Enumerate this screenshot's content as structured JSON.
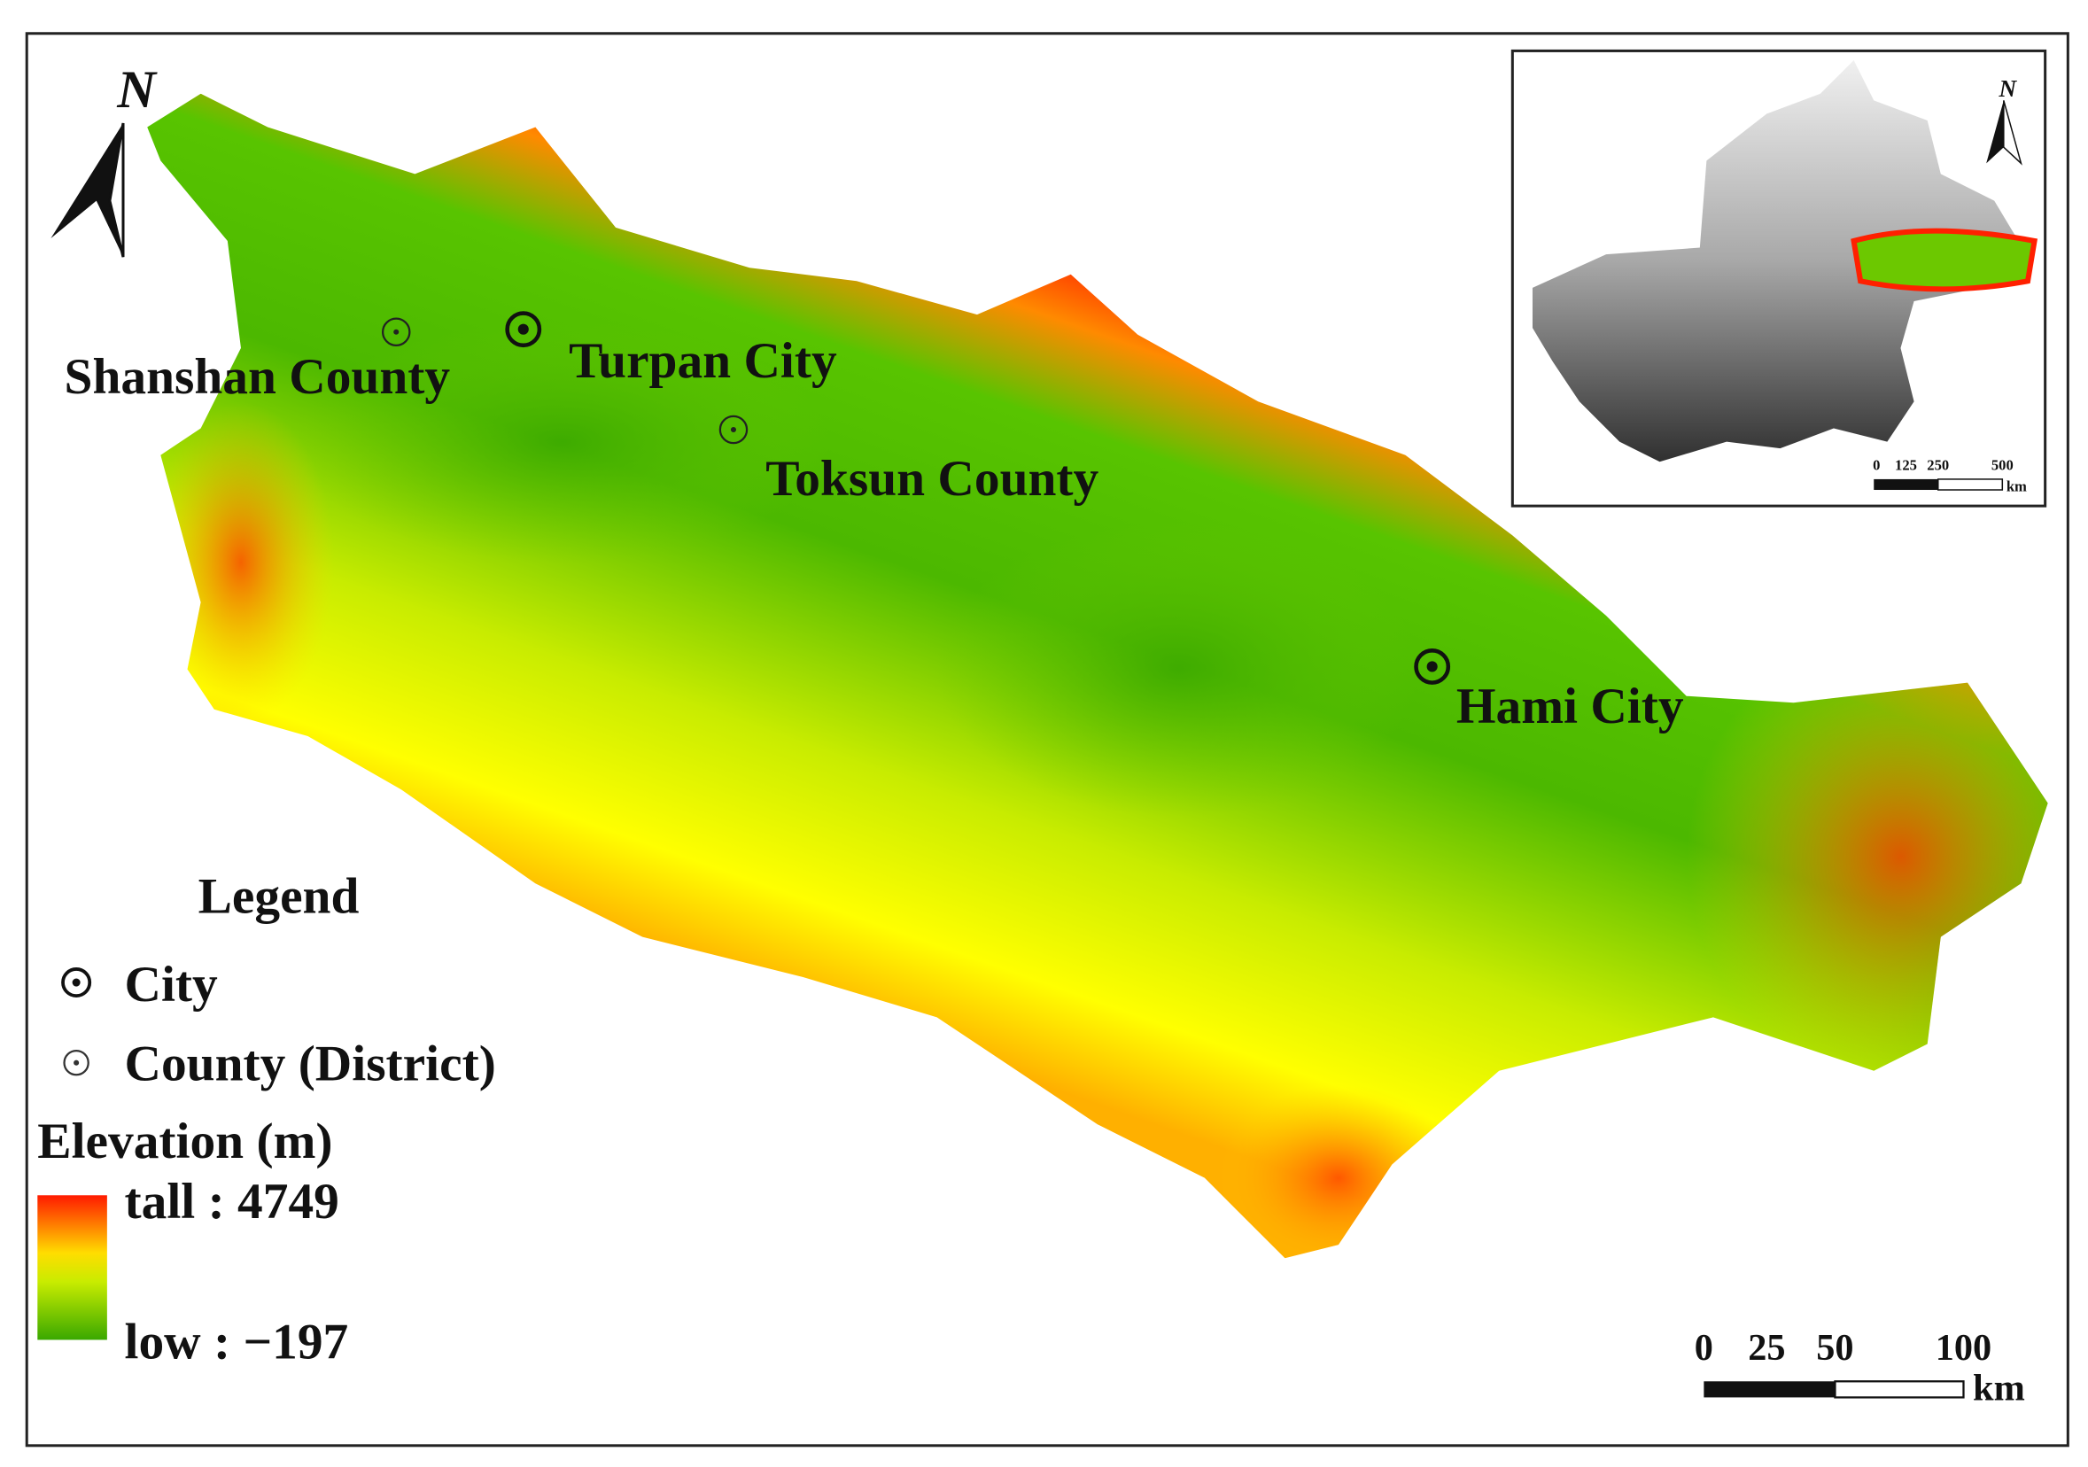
{
  "north_arrow": {
    "label": "N"
  },
  "places": [
    "Shanshan County",
    "Turpan City",
    "Toksun County",
    "Hami City"
  ],
  "legend": {
    "title": "Legend",
    "items": [
      "City",
      "County (District)"
    ]
  },
  "elevation": {
    "title": "Elevation (m)",
    "high": "tall : 4749",
    "low": "low : −197"
  },
  "scale_bar": {
    "ticks": [
      0,
      25,
      50,
      100
    ],
    "unit": "km"
  },
  "inset": {
    "north": "N",
    "scale_bar": {
      "ticks": [
        0,
        125,
        250,
        500
      ],
      "unit": "km"
    }
  }
}
